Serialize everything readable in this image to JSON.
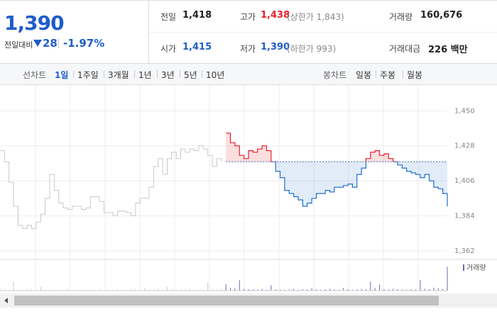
{
  "quote": {
    "price": "1,390",
    "change_label": "전일대비",
    "change": "28",
    "change_pct": "-1.97%"
  },
  "stats": [
    {
      "label": "전일",
      "value": "1,418"
    },
    {
      "label": "고가",
      "value": "1,438",
      "note": "(상한가 1,843)"
    },
    {
      "label": "거래량",
      "value": "160,676"
    },
    {
      "label": "시가",
      "value": "1,415"
    },
    {
      "label": "저가",
      "value": "1,390",
      "note": "(하한가 993)"
    },
    {
      "label": "거래대금",
      "value": "226 백만"
    }
  ],
  "tabs": {
    "line_label": "선차트",
    "line": [
      "1일",
      "1주일",
      "3개월",
      "1년",
      "3년",
      "5년",
      "10년"
    ],
    "candle_label": "봉차트",
    "candle": [
      "일봉",
      "주봉",
      "월봉"
    ]
  },
  "chart_data": {
    "type": "line",
    "ylim": [
      1357,
      1464
    ],
    "yticks": [
      {
        "value": 1362,
        "label": "1,362"
      },
      {
        "value": 1384,
        "label": "1,384"
      },
      {
        "value": 1406,
        "label": "1,406"
      },
      {
        "value": 1428,
        "label": "1,428"
      },
      {
        "value": 1450,
        "label": "1,450"
      }
    ],
    "grid": true,
    "baseline": 1418,
    "above_color": "#e8202a",
    "below_color": "#1f6fd1",
    "series": [
      {
        "color": "#c8c8c8",
        "values": [
          1425,
          1418,
          1405,
          1390,
          1378,
          1376,
          1378,
          1376,
          1380,
          1385,
          1395,
          1410,
          1400,
          1392,
          1389,
          1388,
          1390,
          1390,
          1388,
          1389,
          1396,
          1396,
          1393,
          1386,
          1386,
          1384,
          1387,
          1387,
          1386,
          1384,
          1392,
          1395,
          1395,
          1402,
          1415,
          1420,
          1410,
          1420,
          1424,
          1420,
          1426,
          1424,
          1426,
          1425,
          1428,
          1426,
          1422,
          1415,
          1420,
          1418,
          null,
          null,
          null,
          null,
          null,
          null,
          null,
          null,
          null,
          null,
          null,
          null,
          null,
          null,
          null,
          null,
          null,
          null,
          null,
          null,
          null,
          null,
          null,
          null,
          null,
          null,
          null,
          null,
          null,
          null,
          null,
          null,
          null,
          null,
          null,
          null,
          null,
          null,
          null,
          null,
          null,
          null,
          null,
          null,
          null,
          null,
          null,
          null,
          null,
          null
        ]
      },
      {
        "color": "#1f6fd1",
        "values": [
          null,
          null,
          null,
          null,
          null,
          null,
          null,
          null,
          null,
          null,
          null,
          null,
          null,
          null,
          null,
          null,
          null,
          null,
          null,
          null,
          null,
          null,
          null,
          null,
          null,
          null,
          null,
          null,
          null,
          null,
          null,
          null,
          null,
          null,
          null,
          null,
          null,
          null,
          null,
          null,
          null,
          null,
          null,
          null,
          null,
          null,
          null,
          null,
          null,
          null,
          1436,
          1430,
          1428,
          1422,
          1420,
          1425,
          1424,
          1426,
          1428,
          1425,
          1418,
          1412,
          1408,
          1400,
          1398,
          1396,
          1394,
          1390,
          1392,
          1395,
          1398,
          1398,
          1400,
          1399,
          1402,
          1402,
          1403,
          1404,
          1402,
          1410,
          1414,
          1420,
          1424,
          1425,
          1422,
          1423,
          1420,
          1418,
          1416,
          1414,
          1412,
          1411,
          1410,
          1408,
          1410,
          1406,
          1402,
          1401,
          1398,
          1390
        ]
      }
    ],
    "volume": {
      "name": "거래량",
      "color": "#7a5fb5",
      "ylim": [
        0,
        100
      ],
      "values": [
        8,
        3,
        2,
        30,
        4,
        2,
        3,
        5,
        2,
        12,
        3,
        2,
        4,
        2,
        3,
        6,
        2,
        3,
        2,
        4,
        3,
        2,
        5,
        2,
        3,
        2,
        4,
        3,
        2,
        3,
        5,
        2,
        8,
        4,
        3,
        6,
        4,
        12,
        5,
        3,
        4,
        3,
        6,
        2,
        3,
        4,
        28,
        5,
        3,
        6,
        22,
        10,
        8,
        35,
        6,
        5,
        4,
        4,
        6,
        3,
        18,
        5,
        4,
        3,
        4,
        6,
        3,
        5,
        4,
        8,
        4,
        3,
        5,
        6,
        4,
        3,
        9,
        5,
        3,
        4,
        6,
        4,
        30,
        8,
        20,
        5,
        4,
        6,
        5,
        4,
        3,
        5,
        4,
        35,
        6,
        5,
        10,
        8,
        6,
        80
      ]
    }
  }
}
